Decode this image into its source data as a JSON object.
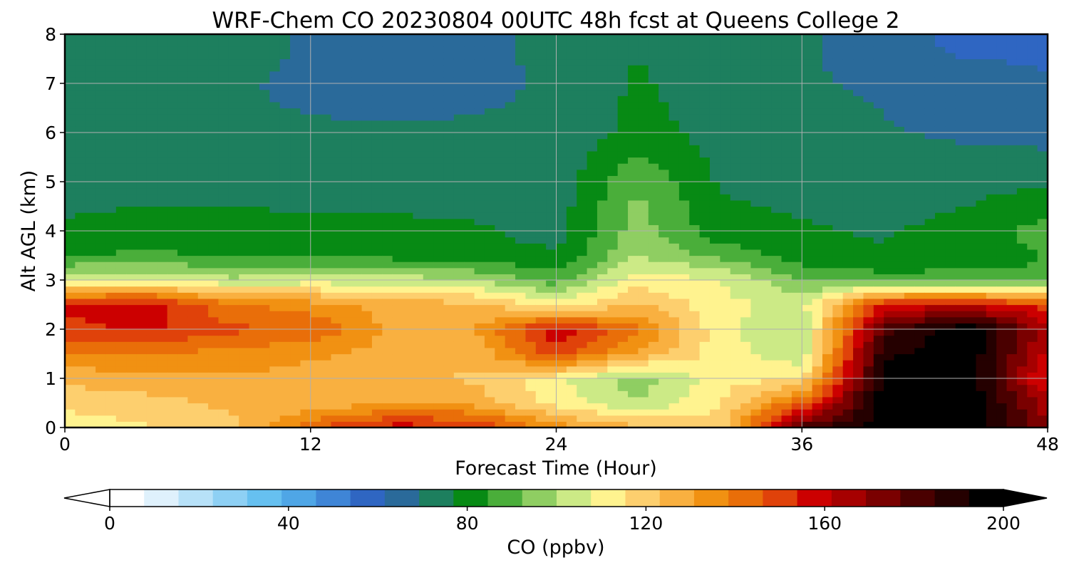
{
  "chart_data": {
    "type": "heatmap",
    "title": "WRF-Chem CO  20230804 00UTC 48h fcst at Queens College 2",
    "xlabel": "Forecast Time (Hour)",
    "ylabel": "Alt AGL (km)",
    "xlim": [
      0,
      48
    ],
    "ylim": [
      0,
      8
    ],
    "xticks": [
      0,
      12,
      24,
      36,
      48
    ],
    "yticks": [
      0,
      1,
      2,
      3,
      4,
      5,
      6,
      7,
      8
    ],
    "grid": true,
    "colorbar": {
      "label": "CO  (ppbv)",
      "min": 0,
      "max": 200,
      "ticks": [
        0,
        40,
        80,
        120,
        160,
        200
      ],
      "extend": "both",
      "orientation": "horizontal",
      "colors": [
        "#ffffff",
        "#dff1fc",
        "#b7e1f8",
        "#8ed0f4",
        "#66c0f0",
        "#4fa6e6",
        "#3f85d6",
        "#2f66c2",
        "#2a6a9a",
        "#1d7f5e",
        "#078a14",
        "#4aae3a",
        "#8fce62",
        "#ccea86",
        "#fff38f",
        "#fdcf6e",
        "#f9b040",
        "#f19112",
        "#e96e09",
        "#e0420a",
        "#cc0000",
        "#a60000",
        "#7a0000",
        "#4a0000",
        "#250000",
        "#000000"
      ]
    },
    "x_hours": [
      0,
      4,
      8,
      12,
      16,
      20,
      24,
      28,
      32,
      36,
      40,
      44,
      48
    ],
    "y_km": [
      0,
      0.5,
      1,
      1.5,
      2,
      2.5,
      3,
      3.5,
      4,
      5,
      6,
      7,
      8
    ],
    "values_ppbv": [
      [
        110,
        115,
        120,
        145,
        158,
        155,
        135,
        125,
        118,
        180,
        198,
        200,
        170
      ],
      [
        118,
        120,
        125,
        125,
        130,
        128,
        112,
        100,
        115,
        145,
        198,
        200,
        165
      ],
      [
        125,
        128,
        130,
        128,
        125,
        122,
        110,
        96,
        112,
        115,
        195,
        200,
        150
      ],
      [
        138,
        140,
        135,
        132,
        128,
        125,
        150,
        128,
        112,
        102,
        190,
        200,
        160
      ],
      [
        152,
        155,
        148,
        145,
        128,
        130,
        160,
        140,
        110,
        100,
        180,
        200,
        165
      ],
      [
        155,
        160,
        140,
        135,
        128,
        125,
        112,
        125,
        110,
        105,
        155,
        160,
        150
      ],
      [
        105,
        108,
        102,
        104,
        104,
        100,
        88,
        112,
        108,
        92,
        88,
        88,
        85
      ],
      [
        84,
        86,
        84,
        82,
        82,
        80,
        78,
        100,
        90,
        80,
        78,
        80,
        85
      ],
      [
        78,
        80,
        80,
        79,
        79,
        78,
        74,
        96,
        80,
        78,
        76,
        80,
        88
      ],
      [
        74,
        74,
        74,
        73,
        73,
        73,
        72,
        92,
        76,
        74,
        72,
        74,
        76
      ],
      [
        72,
        71,
        70,
        70,
        70,
        70,
        70,
        80,
        74,
        72,
        70,
        68,
        66
      ],
      [
        70,
        70,
        70,
        68,
        66,
        68,
        70,
        78,
        72,
        70,
        68,
        65,
        62
      ],
      [
        74,
        76,
        74,
        68,
        64,
        66,
        72,
        76,
        72,
        70,
        66,
        58,
        60
      ]
    ]
  }
}
